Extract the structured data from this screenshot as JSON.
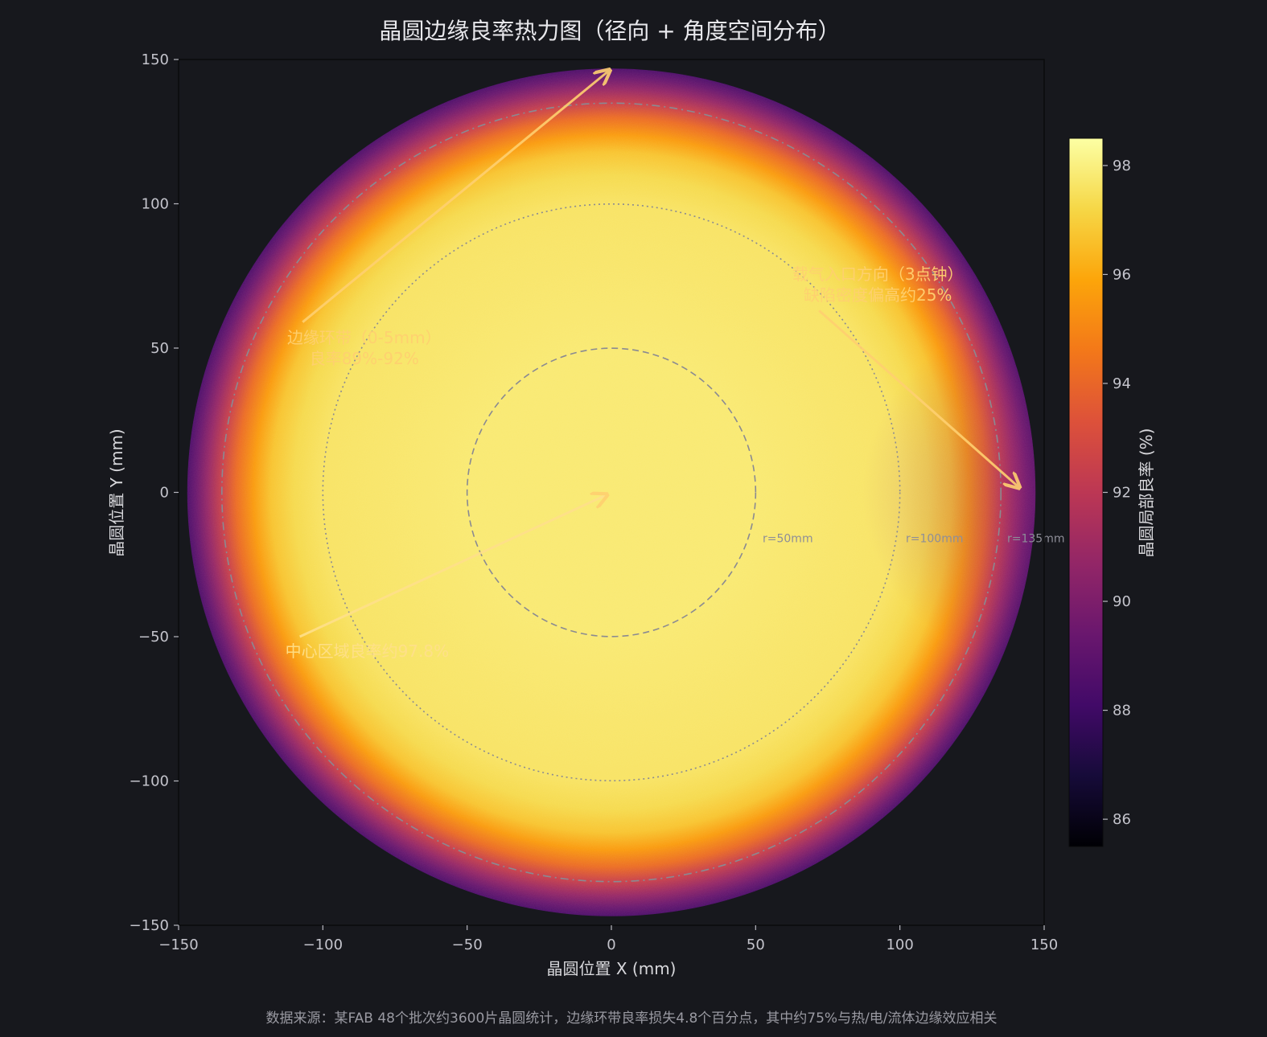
{
  "chart_data": {
    "type": "heatmap",
    "title": "晶圆边缘良率热力图（径向 + 角度空间分布）",
    "xlabel": "晶圆位置 X (mm)",
    "ylabel": "晶圆位置 Y (mm)",
    "xlim": [
      -150,
      150
    ],
    "ylim": [
      -150,
      150
    ],
    "x_ticks": [
      -150,
      -100,
      -50,
      0,
      50,
      100,
      150
    ],
    "y_ticks": [
      -150,
      -100,
      -50,
      0,
      50,
      100,
      150
    ],
    "wafer_radius_mm": 147,
    "colormap": "inferno",
    "colorbar": {
      "label": "晶圆局部良率 (%)",
      "range": [
        85.5,
        98.5
      ],
      "ticks": [
        86,
        88,
        90,
        92,
        94,
        96,
        98
      ]
    },
    "radial_profile": {
      "r_mm": [
        0,
        50,
        100,
        110,
        118,
        124,
        130,
        135,
        140,
        144,
        147
      ],
      "yield_pct": [
        97.8,
        97.8,
        97.6,
        97.3,
        96.7,
        95.6,
        94.2,
        92.5,
        90.8,
        89.4,
        88.5
      ]
    },
    "hotspot": {
      "direction": "3点钟",
      "defect_density_increase_pct": 25
    },
    "reference_circles": [
      {
        "r": 50,
        "label": "r=50mm",
        "style": "dashed"
      },
      {
        "r": 100,
        "label": "r=100mm",
        "style": "dotted"
      },
      {
        "r": 135,
        "label": "r=135mm",
        "style": "dashdot"
      }
    ],
    "annotations": [
      {
        "lines": [
          "边缘环带（0-5mm）",
          "良率89%-92%"
        ],
        "text_xy": [
          -118,
          50
        ],
        "arrow_to": [
          -1,
          146
        ]
      },
      {
        "lines": [
          "载气入口方向（3点钟）",
          "缺陷密度偏高约25%"
        ],
        "text_xy": [
          60,
          72
        ],
        "arrow_to": [
          141,
          2
        ]
      },
      {
        "lines": [
          "中心区域良率约97.8%"
        ],
        "text_xy": [
          -117,
          -55
        ],
        "arrow_to": [
          -2,
          -1
        ]
      }
    ],
    "footnote": "数据来源：某FAB 48个批次约3600片晶圆统计，边缘环带良率损失4.8个百分点，其中约75%与热/电/流体边缘效应相关"
  }
}
